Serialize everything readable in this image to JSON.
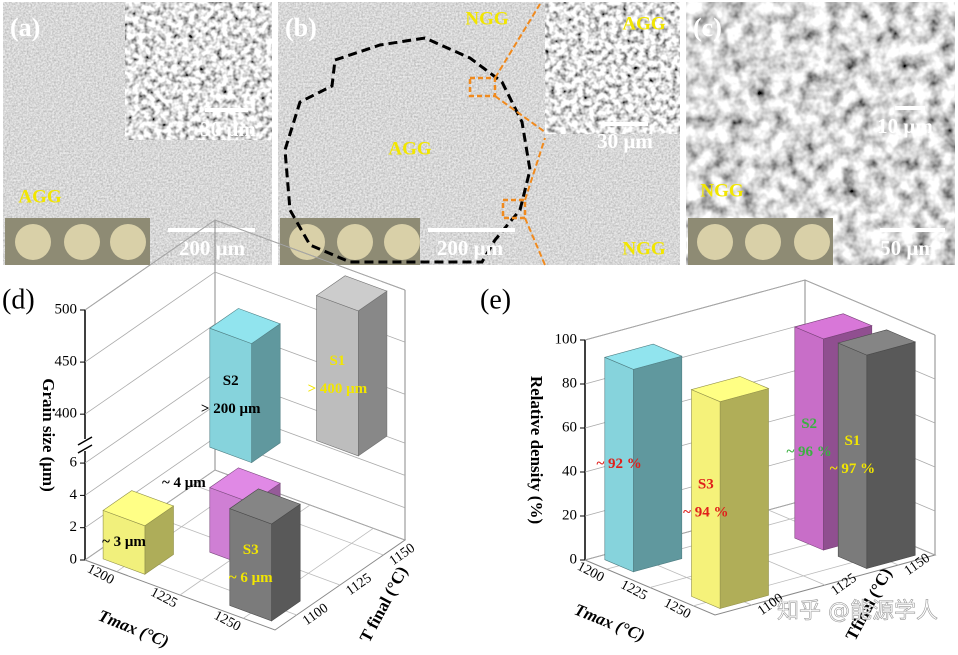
{
  "panels": [
    {
      "label": "(a)",
      "scale_inset": "30 μm",
      "scale_main": "200 μm",
      "region": "AGG"
    },
    {
      "label": "(b)",
      "region_top": "NGG",
      "region_center": "AGG",
      "inset_top": "AGG",
      "scale_inset": "30 μm",
      "scale_main": "200 μm",
      "inset_bottom": "NGG"
    },
    {
      "label": "(c)",
      "scale_inset": "10 μm",
      "region": "NGG",
      "scale_main": "50 μm"
    }
  ],
  "chart_data": [
    {
      "type": "bar3d",
      "panel_label": "(d)",
      "y_label": "Grain size (μm)",
      "x_label": "Tmax (°C)",
      "z_label": "T final (°C)",
      "ylim": [
        0,
        500
      ],
      "y_break": [
        6.5,
        380
      ],
      "yticks": [
        0,
        2,
        4,
        6,
        400,
        450,
        500
      ],
      "xlim": [
        1187.5,
        1262.5
      ],
      "xticks": [
        1200,
        1225,
        1250
      ],
      "zlim": [
        1087.5,
        1162.5
      ],
      "zticks": [
        1100,
        1125,
        1150
      ],
      "bars": [
        {
          "name": "S1",
          "color": "#bdbdbd",
          "label_color": "#f2e600",
          "tmax": 1250,
          "tfinal": 1150,
          "value": 500,
          "annotation": "> 400 μm"
        },
        {
          "color": "#cf7fd4",
          "label_color": "#000000",
          "label_position": "left",
          "tmax": 1225,
          "tfinal": 1125,
          "value": 4,
          "annotation": "~ 4 μm"
        },
        {
          "name": "S2",
          "color": "#86d3dc",
          "label_color": "#000000",
          "tmax": 1225,
          "tfinal": 1125,
          "value": 475,
          "annotation": "> 200 μm"
        },
        {
          "name": "S3",
          "color": "#7b7b7b",
          "label_color": "#f2e600",
          "tmax": 1250,
          "tfinal": 1100,
          "value": 6,
          "annotation": "~ 6 μm"
        },
        {
          "color": "#f1f07c",
          "label_color": "#000000",
          "tmax": 1200,
          "tfinal": 1100,
          "value": 3,
          "annotation": "~ 3 μm"
        }
      ]
    },
    {
      "type": "bar3d",
      "panel_label": "(e)",
      "y_label": "Relative density (%)",
      "x_label": "Tmax (°C)",
      "z_label": "Tfinal (°C)",
      "ylim": [
        0,
        100
      ],
      "yticks": [
        0,
        20,
        40,
        60,
        80,
        100
      ],
      "xlim": [
        1187.5,
        1262.5
      ],
      "xticks": [
        1200,
        1225,
        1250
      ],
      "zlim": [
        1087.5,
        1162.5
      ],
      "zticks": [
        1100,
        1125,
        1150
      ],
      "bars": [
        {
          "name": "S2",
          "color": "#c86ec8",
          "label_color": "#3cb043",
          "tmax": 1225,
          "tfinal": 1150,
          "value": 96,
          "annotation": "~ 96 %"
        },
        {
          "name": "S1",
          "color": "#7b7b7b",
          "label_color": "#f2e600",
          "tmax": 1250,
          "tfinal": 1150,
          "value": 97,
          "annotation": "~ 97 %"
        },
        {
          "color": "#86d3dc",
          "label_color": "#e0201b",
          "tmax": 1200,
          "tfinal": 1100,
          "value": 92,
          "annotation": "~ 92 %"
        },
        {
          "name": "S3",
          "color": "#f5f27a",
          "label_color": "#e0201b",
          "tmax": 1250,
          "tfinal": 1100,
          "value": 94,
          "annotation": "~ 94 %"
        }
      ]
    }
  ],
  "watermark": "知乎 @能源学人"
}
